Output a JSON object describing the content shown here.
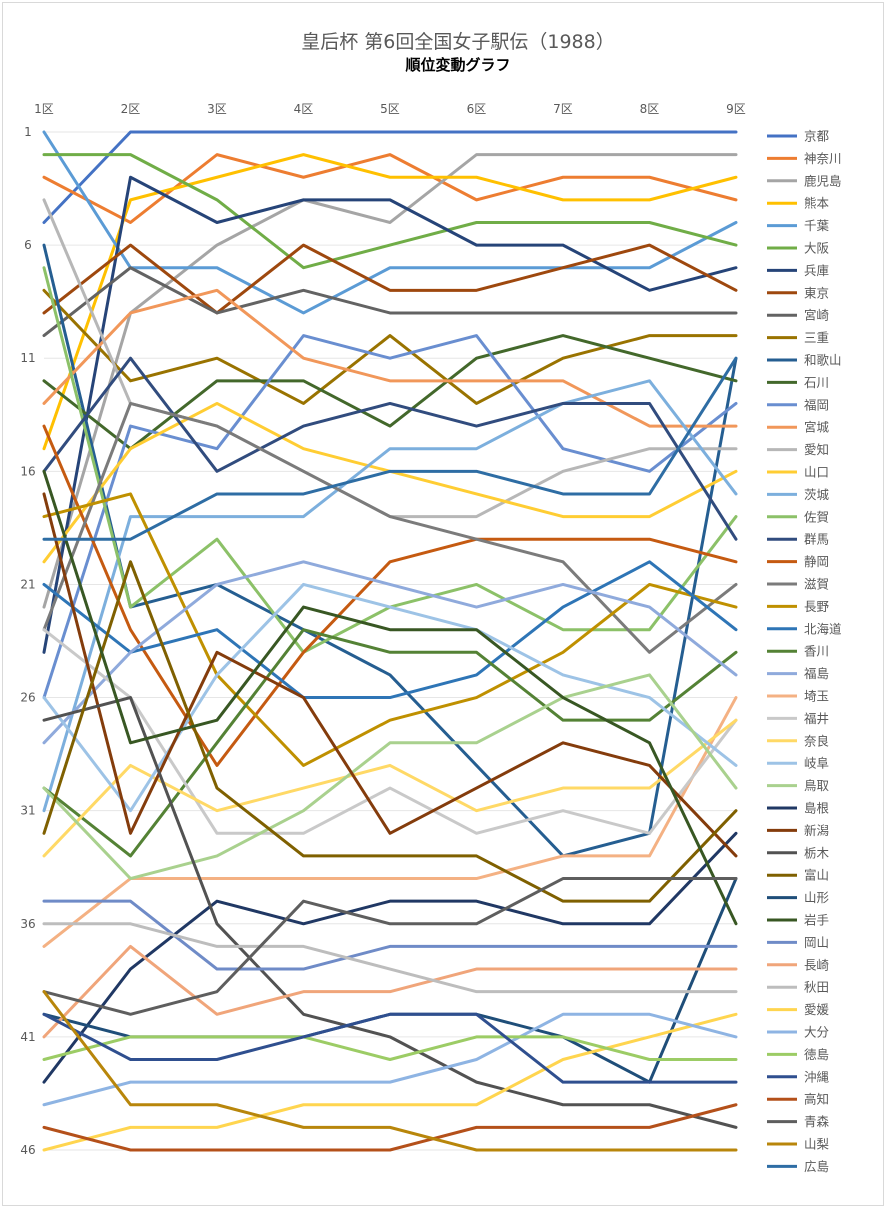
{
  "chart_data": {
    "type": "line",
    "title": "皇后杯 第6回全国女子駅伝（1988）",
    "subtitle": "順位変動グラフ",
    "x": [
      "1区",
      "2区",
      "3区",
      "4区",
      "5区",
      "6区",
      "7区",
      "8区",
      "9区"
    ],
    "y_ticks": [
      "1",
      "6",
      "11",
      "16",
      "21",
      "26",
      "31",
      "36",
      "41",
      "46"
    ],
    "ylim": [
      1,
      46
    ],
    "y_reversed": true,
    "grid": true,
    "legend": "right",
    "series": [
      {
        "name": "京都",
        "color": "#4472C4",
        "values": [
          5,
          1,
          1,
          1,
          1,
          1,
          1,
          1,
          1
        ]
      },
      {
        "name": "神奈川",
        "color": "#ED7D31",
        "values": [
          3,
          5,
          2,
          3,
          2,
          4,
          3,
          3,
          4
        ]
      },
      {
        "name": "鹿児島",
        "color": "#A5A5A5",
        "values": [
          22,
          9,
          6,
          4,
          5,
          2,
          2,
          2,
          2
        ]
      },
      {
        "name": "熊本",
        "color": "#FFC000",
        "values": [
          15,
          4,
          3,
          2,
          3,
          3,
          4,
          4,
          3
        ]
      },
      {
        "name": "千葉",
        "color": "#5B9BD5",
        "values": [
          1,
          7,
          7,
          9,
          7,
          7,
          7,
          7,
          5
        ]
      },
      {
        "name": "大阪",
        "color": "#70AD47",
        "values": [
          2,
          2,
          4,
          7,
          6,
          5,
          5,
          5,
          6
        ]
      },
      {
        "name": "兵庫",
        "color": "#264478",
        "values": [
          24,
          3,
          5,
          4,
          4,
          6,
          6,
          8,
          7
        ]
      },
      {
        "name": "東京",
        "color": "#9E480E",
        "values": [
          9,
          6,
          9,
          6,
          8,
          8,
          7,
          6,
          8
        ]
      },
      {
        "name": "宮崎",
        "color": "#636363",
        "values": [
          10,
          7,
          9,
          8,
          9,
          9,
          9,
          9,
          9
        ]
      },
      {
        "name": "三重",
        "color": "#997300",
        "values": [
          8,
          12,
          11,
          13,
          10,
          13,
          11,
          10,
          10
        ]
      },
      {
        "name": "和歌山",
        "color": "#255E91",
        "values": [
          6,
          22,
          21,
          23,
          25,
          29,
          33,
          32,
          11
        ]
      },
      {
        "name": "石川",
        "color": "#43682B",
        "values": [
          12,
          15,
          12,
          12,
          14,
          11,
          10,
          11,
          12
        ]
      },
      {
        "name": "福岡",
        "color": "#698ED0",
        "values": [
          26,
          14,
          15,
          10,
          11,
          10,
          15,
          16,
          13
        ]
      },
      {
        "name": "宮城",
        "color": "#F1975A",
        "values": [
          13,
          9,
          8,
          11,
          12,
          12,
          12,
          14,
          14
        ]
      },
      {
        "name": "愛知",
        "color": "#B7B7B7",
        "values": [
          4,
          13,
          14,
          16,
          18,
          18,
          16,
          15,
          15
        ]
      },
      {
        "name": "山口",
        "color": "#FFCD33",
        "values": [
          20,
          15,
          13,
          15,
          16,
          17,
          18,
          18,
          16
        ]
      },
      {
        "name": "茨城",
        "color": "#7CAFDD",
        "values": [
          31,
          18,
          18,
          18,
          15,
          15,
          13,
          12,
          17
        ]
      },
      {
        "name": "佐賀",
        "color": "#8CC168",
        "values": [
          7,
          22,
          19,
          24,
          22,
          21,
          23,
          23,
          18
        ]
      },
      {
        "name": "群馬",
        "color": "#314C7E",
        "values": [
          16,
          11,
          16,
          14,
          13,
          14,
          13,
          13,
          19
        ]
      },
      {
        "name": "静岡",
        "color": "#C55A11",
        "values": [
          14,
          23,
          29,
          24,
          20,
          19,
          19,
          19,
          20
        ]
      },
      {
        "name": "滋賀",
        "color": "#7B7B7B",
        "values": [
          23,
          13,
          14,
          16,
          18,
          19,
          20,
          24,
          21
        ]
      },
      {
        "name": "長野",
        "color": "#BF9000",
        "values": [
          18,
          17,
          25,
          29,
          27,
          26,
          24,
          21,
          22
        ]
      },
      {
        "name": "北海道",
        "color": "#2E75B6",
        "values": [
          21,
          24,
          23,
          26,
          26,
          25,
          22,
          20,
          23
        ]
      },
      {
        "name": "香川",
        "color": "#548235",
        "values": [
          30,
          33,
          28,
          23,
          24,
          24,
          27,
          27,
          24
        ]
      },
      {
        "name": "福島",
        "color": "#8FAADC",
        "values": [
          28,
          24,
          21,
          20,
          21,
          22,
          21,
          22,
          25
        ]
      },
      {
        "name": "埼玉",
        "color": "#F4B183",
        "values": [
          37,
          34,
          34,
          34,
          34,
          34,
          33,
          33,
          26
        ]
      },
      {
        "name": "福井",
        "color": "#C9C9C9",
        "values": [
          23,
          26,
          32,
          32,
          30,
          32,
          31,
          32,
          27
        ]
      },
      {
        "name": "奈良",
        "color": "#FFD966",
        "values": [
          33,
          29,
          31,
          30,
          29,
          31,
          30,
          30,
          27
        ]
      },
      {
        "name": "岐阜",
        "color": "#9DC3E6",
        "values": [
          26,
          31,
          25,
          21,
          22,
          23,
          25,
          26,
          29
        ]
      },
      {
        "name": "鳥取",
        "color": "#A9D18E",
        "values": [
          30,
          34,
          33,
          31,
          28,
          28,
          26,
          25,
          30
        ]
      },
      {
        "name": "島根",
        "color": "#203864",
        "values": [
          43,
          38,
          35,
          36,
          35,
          35,
          36,
          36,
          32
        ]
      },
      {
        "name": "新潟",
        "color": "#843C0C",
        "values": [
          17,
          32,
          24,
          26,
          32,
          30,
          28,
          29,
          33
        ]
      },
      {
        "name": "栃木",
        "color": "#525252",
        "values": [
          27,
          26,
          36,
          40,
          41,
          43,
          44,
          44,
          45
        ]
      },
      {
        "name": "富山",
        "color": "#7F6000",
        "values": [
          32,
          20,
          30,
          33,
          33,
          33,
          35,
          35,
          31
        ]
      },
      {
        "name": "山形",
        "color": "#1F4E79",
        "values": [
          40,
          41,
          41,
          41,
          40,
          40,
          41,
          43,
          34
        ]
      },
      {
        "name": "岩手",
        "color": "#385723",
        "values": [
          16,
          28,
          27,
          22,
          23,
          23,
          26,
          28,
          36
        ]
      },
      {
        "name": "岡山",
        "color": "#6F8BC7",
        "values": [
          35,
          35,
          38,
          38,
          37,
          37,
          37,
          37,
          37
        ]
      },
      {
        "name": "長崎",
        "color": "#F0A57A",
        "values": [
          41,
          37,
          40,
          39,
          39,
          38,
          38,
          38,
          38
        ]
      },
      {
        "name": "秋田",
        "color": "#BDBDBD",
        "values": [
          36,
          36,
          37,
          37,
          38,
          39,
          39,
          39,
          39
        ]
      },
      {
        "name": "愛媛",
        "color": "#FFD54F",
        "values": [
          46,
          45,
          45,
          44,
          44,
          44,
          42,
          41,
          40
        ]
      },
      {
        "name": "大分",
        "color": "#8EB4E3",
        "values": [
          44,
          43,
          43,
          43,
          43,
          42,
          40,
          40,
          41
        ]
      },
      {
        "name": "徳島",
        "color": "#9CCC65",
        "values": [
          42,
          41,
          41,
          41,
          42,
          41,
          41,
          42,
          42
        ]
      },
      {
        "name": "沖縄",
        "color": "#2F4F8F",
        "values": [
          40,
          42,
          42,
          41,
          40,
          40,
          43,
          43,
          43
        ]
      },
      {
        "name": "高知",
        "color": "#B4501A",
        "values": [
          45,
          46,
          46,
          46,
          46,
          45,
          45,
          45,
          44
        ]
      },
      {
        "name": "青森",
        "color": "#5E5E5E",
        "values": [
          39,
          40,
          39,
          35,
          36,
          36,
          34,
          34,
          34
        ]
      },
      {
        "name": "山梨",
        "color": "#B8860B",
        "values": [
          39,
          44,
          44,
          45,
          45,
          46,
          46,
          46,
          46
        ]
      },
      {
        "name": "広島",
        "color": "#2E6DA4",
        "values": [
          19,
          19,
          17,
          17,
          16,
          16,
          17,
          17,
          11
        ]
      }
    ]
  }
}
